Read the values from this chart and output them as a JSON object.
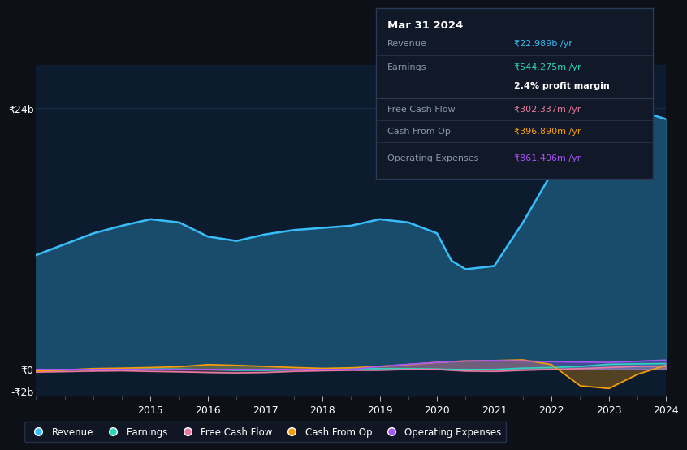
{
  "bg_color": "#0d1117",
  "plot_bg_color": "#0d1b2e",
  "grid_color": "#1e3050",
  "title_box": {
    "date": "Mar 31 2024",
    "bg_color": "#111827",
    "border_color": "#1e3050",
    "rows": [
      {
        "label": "Revenue",
        "value": "₹22.989b /yr",
        "value_color": "#38bdf8"
      },
      {
        "label": "Earnings",
        "value": "₹544.275m /yr",
        "value_color": "#2dd4bf"
      },
      {
        "label": "",
        "value": "2.4% profit margin",
        "value_color": "#ffffff",
        "bold": true
      },
      {
        "label": "Free Cash Flow",
        "value": "₹302.337m /yr",
        "value_color": "#e879a0"
      },
      {
        "label": "Cash From Op",
        "value": "₹396.890m /yr",
        "value_color": "#f59e0b"
      },
      {
        "label": "Operating Expenses",
        "value": "₹861.406m /yr",
        "value_color": "#a855f7"
      }
    ]
  },
  "years": [
    2013,
    2013.5,
    2014,
    2014.5,
    2015,
    2015.5,
    2016,
    2016.5,
    2017,
    2017.5,
    2018,
    2018.5,
    2019,
    2019.5,
    2020,
    2020.25,
    2020.5,
    2021,
    2021.5,
    2022,
    2022.5,
    2023,
    2023.5,
    2024
  ],
  "revenue": [
    10.5,
    11.5,
    12.5,
    13.2,
    13.8,
    13.5,
    12.2,
    11.8,
    12.4,
    12.8,
    13.0,
    13.2,
    13.8,
    13.5,
    12.5,
    10.0,
    9.2,
    9.5,
    13.5,
    18.0,
    22.0,
    24.5,
    23.8,
    22.989
  ],
  "earnings": [
    -0.1,
    -0.05,
    0.0,
    0.02,
    0.04,
    0.03,
    -0.02,
    -0.08,
    -0.08,
    -0.04,
    0.0,
    0.04,
    0.08,
    0.08,
    0.04,
    0.0,
    0.0,
    0.0,
    0.12,
    0.18,
    0.28,
    0.48,
    0.52,
    0.544
  ],
  "free_cash_flow": [
    -0.25,
    -0.2,
    -0.15,
    -0.12,
    -0.18,
    -0.22,
    -0.28,
    -0.32,
    -0.28,
    -0.18,
    -0.12,
    -0.08,
    -0.08,
    0.0,
    0.0,
    -0.08,
    -0.15,
    -0.18,
    -0.08,
    0.0,
    0.08,
    0.18,
    0.28,
    0.302
  ],
  "cash_from_op": [
    -0.15,
    -0.05,
    0.08,
    0.12,
    0.18,
    0.25,
    0.45,
    0.38,
    0.28,
    0.18,
    0.1,
    0.15,
    0.28,
    0.45,
    0.65,
    0.72,
    0.78,
    0.82,
    0.88,
    0.45,
    -1.5,
    -1.75,
    -0.45,
    0.397
  ],
  "operating_expenses": [
    0.0,
    0.0,
    0.0,
    0.0,
    0.0,
    0.0,
    0.0,
    0.0,
    0.0,
    0.0,
    0.0,
    0.0,
    0.28,
    0.48,
    0.65,
    0.72,
    0.78,
    0.82,
    0.78,
    0.72,
    0.68,
    0.65,
    0.75,
    0.861
  ],
  "ylim": [
    -2.5,
    28
  ],
  "yticks": [
    -2,
    0,
    24
  ],
  "ytick_labels": [
    "-₹2b",
    "₹0",
    "₹24b"
  ],
  "xtick_years": [
    2015,
    2016,
    2017,
    2018,
    2019,
    2020,
    2021,
    2022,
    2023,
    2024
  ],
  "line_colors": {
    "revenue": "#38bdf8",
    "earnings": "#2dd4bf",
    "free_cash_flow": "#e879a0",
    "cash_from_op": "#f59e0b",
    "operating_expenses": "#a855f7"
  }
}
